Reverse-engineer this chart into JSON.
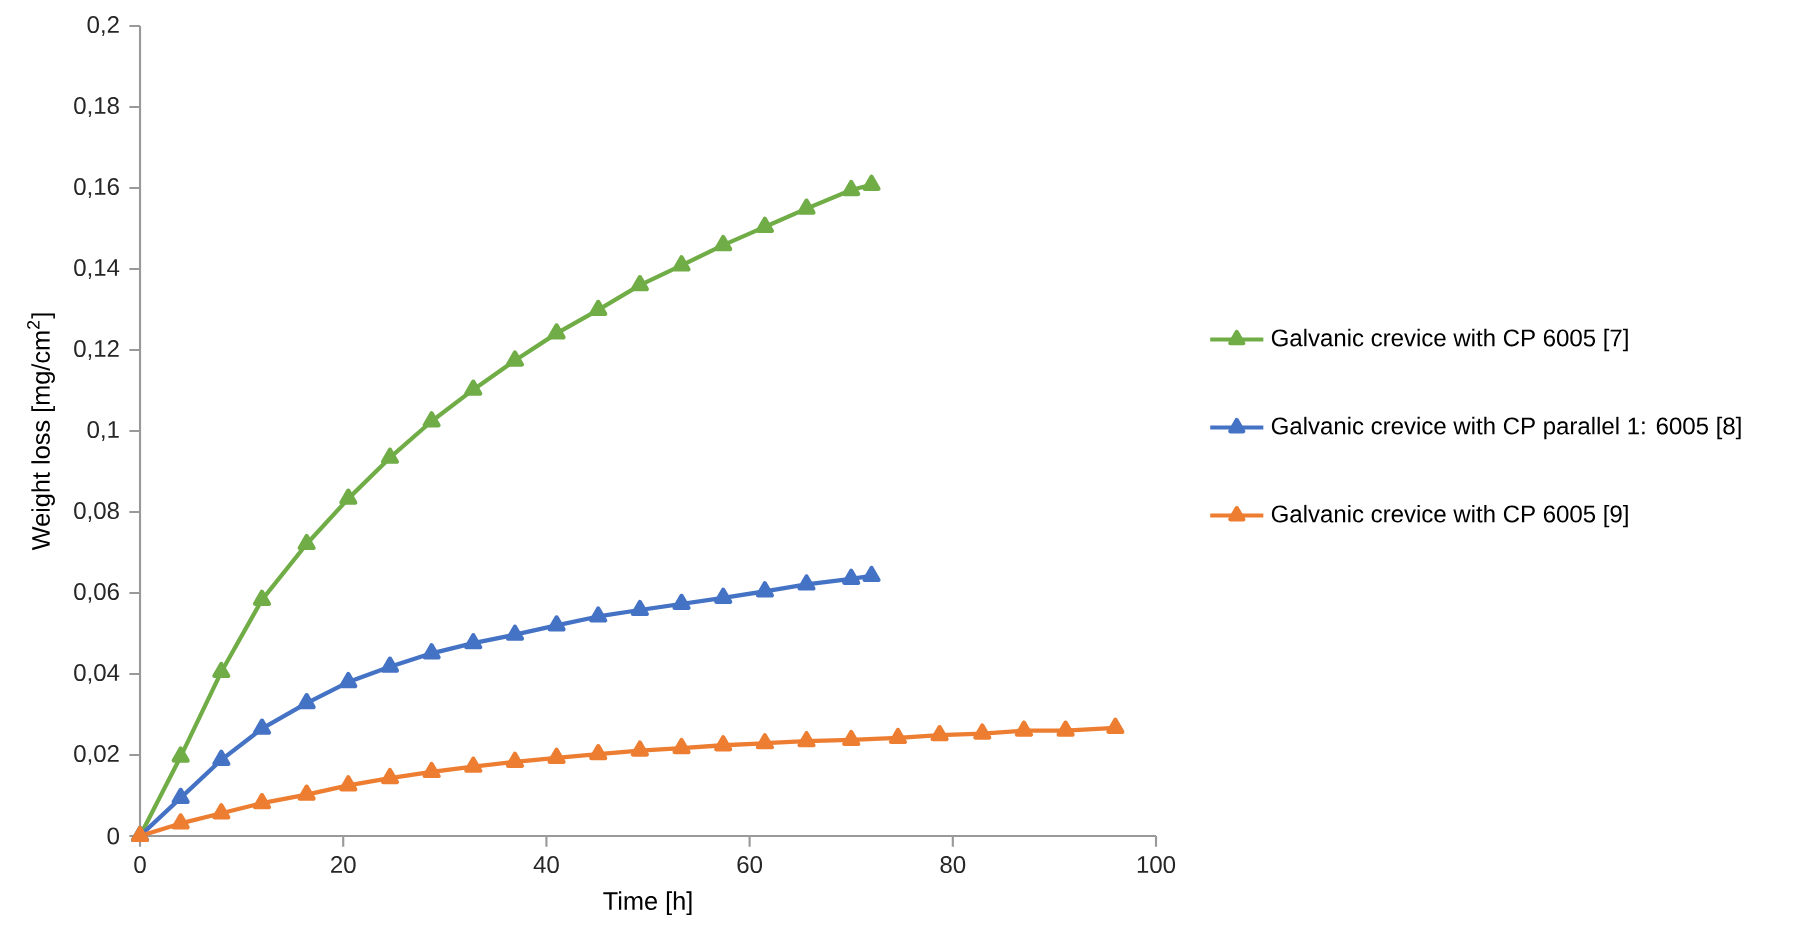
{
  "chart_data": {
    "type": "line",
    "xlabel": "Time [h]",
    "ylabel": "Weight loss [mg/cm$^{2}$]",
    "xlim": [
      0,
      100
    ],
    "xticks": [
      0,
      20,
      40,
      60,
      80,
      100
    ],
    "ylim": [
      0,
      0.2
    ],
    "yticks": [
      {
        "value": 0,
        "label": "0"
      },
      {
        "value": 0.02,
        "label": "0,02"
      },
      {
        "value": 0.04,
        "label": "0,04"
      },
      {
        "value": 0.06,
        "label": "0,06"
      },
      {
        "value": 0.08,
        "label": "0,08"
      },
      {
        "value": 0.1,
        "label": "0,1"
      },
      {
        "value": 0.12,
        "label": "0,12"
      },
      {
        "value": 0.14,
        "label": "0,14"
      },
      {
        "value": 0.16,
        "label": "0,16"
      },
      {
        "value": 0.18,
        "label": "0,18"
      },
      {
        "value": 0.2,
        "label": "0,2"
      }
    ],
    "grid": false,
    "legend": "right",
    "marker": "triangle",
    "line_style": "solid",
    "series": [
      {
        "name": "Galvanic crevice with CP 6005 [7]",
        "color": "#70ad47",
        "x": [
          0,
          4,
          8,
          12,
          16.4,
          20.5,
          24.6,
          28.7,
          32.8,
          36.9,
          41,
          45.1,
          49.2,
          53.3,
          57.4,
          61.5,
          65.6,
          70,
          72
        ],
        "values": [
          0,
          0.0196,
          0.0405,
          0.0583,
          0.0721,
          0.0833,
          0.0934,
          0.1024,
          0.1102,
          0.1174,
          0.1241,
          0.1299,
          0.136,
          0.1409,
          0.1459,
          0.1504,
          0.1549,
          0.1595,
          0.1608
        ]
      },
      {
        "name": "Galvanic crevice with CP parallel 1: 6005 [8]",
        "color": "#4472c4",
        "x": [
          0,
          4,
          8,
          12,
          16.4,
          20.5,
          24.6,
          28.7,
          32.8,
          36.9,
          41,
          45.1,
          49.2,
          53.3,
          57.4,
          61.5,
          65.6,
          70,
          72
        ],
        "values": [
          0,
          0.0094,
          0.0188,
          0.0265,
          0.0328,
          0.038,
          0.0418,
          0.0451,
          0.0476,
          0.0497,
          0.052,
          0.0542,
          0.0558,
          0.0573,
          0.0588,
          0.0604,
          0.0621,
          0.0635,
          0.0642
        ]
      },
      {
        "name": "Galvanic crevice with CP 6005 [9]",
        "color": "#ed7d31",
        "x": [
          0,
          4,
          8,
          12,
          16.4,
          20.5,
          24.6,
          28.7,
          32.8,
          36.9,
          41,
          45.1,
          49.2,
          53.3,
          57.4,
          61.5,
          65.6,
          70,
          74.6,
          78.7,
          82.9,
          87,
          91.1,
          96
        ],
        "values": [
          0,
          0.0031,
          0.0056,
          0.0081,
          0.0102,
          0.0125,
          0.0143,
          0.0158,
          0.0171,
          0.0183,
          0.0193,
          0.0202,
          0.0211,
          0.0217,
          0.0224,
          0.0229,
          0.0234,
          0.0237,
          0.0242,
          0.0249,
          0.0253,
          0.026,
          0.026,
          0.0267
        ]
      }
    ]
  }
}
